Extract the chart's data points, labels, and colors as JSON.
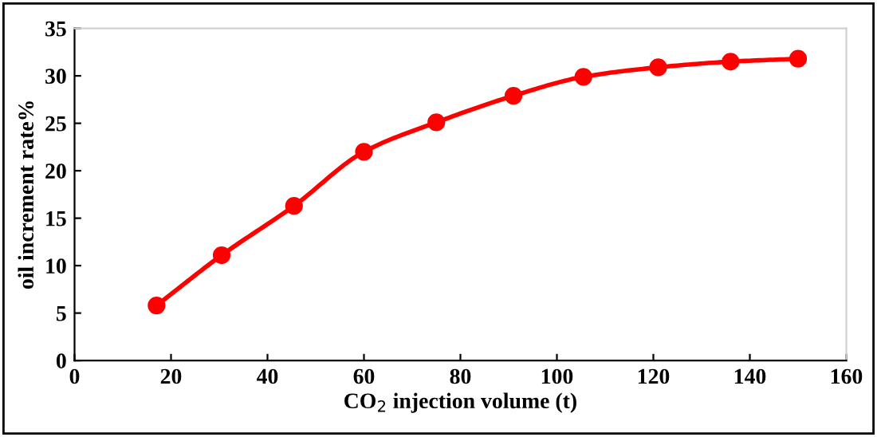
{
  "chart_data": {
    "type": "line",
    "xlabel": "CO$_{2}$ injection volume (t)",
    "ylabel": "oil increment rate%",
    "x": [
      17,
      30.5,
      45.5,
      60,
      75,
      91,
      105.5,
      121,
      136,
      150
    ],
    "series": [
      {
        "color": "#ff0000",
        "values": [
          5.8,
          11.1,
          16.3,
          22,
          25.1,
          27.9,
          29.9,
          30.9,
          31.5,
          31.8
        ]
      }
    ],
    "xlim": [
      0,
      160
    ],
    "xticks": [
      0,
      20,
      40,
      60,
      80,
      100,
      120,
      140,
      160
    ],
    "ylim": [
      0,
      35
    ],
    "yticks": [
      0,
      5,
      10,
      15,
      20,
      25,
      30,
      35
    ],
    "marker": "circle",
    "line_style": "solid",
    "grid": false
  }
}
